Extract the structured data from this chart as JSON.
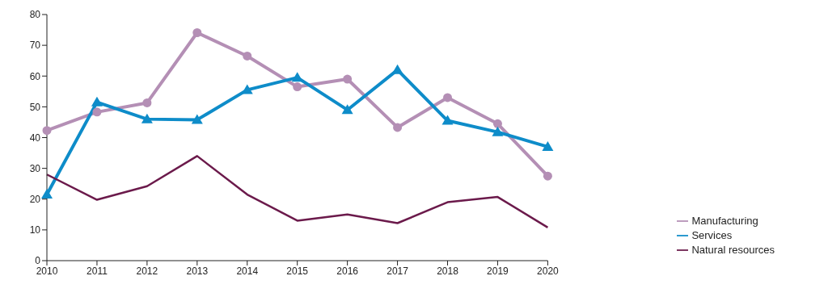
{
  "chart_data": {
    "type": "line",
    "categories": [
      "2010",
      "2011",
      "2012",
      "2013",
      "2014",
      "2015",
      "2016",
      "2017",
      "2018",
      "2019",
      "2020"
    ],
    "series": [
      {
        "name": "Manufacturing",
        "color": "#b48fb5",
        "marker": "circle",
        "values": [
          42.3,
          48.3,
          51.3,
          74.1,
          66.5,
          56.5,
          59,
          43.3,
          53,
          44.5,
          27.5
        ]
      },
      {
        "name": "Services",
        "color": "#0e8cc9",
        "marker": "triangle",
        "values": [
          21.5,
          51.5,
          46,
          45.8,
          55.5,
          59.5,
          49,
          62,
          45.5,
          41.8,
          37
        ]
      },
      {
        "name": "Natural resources",
        "color": "#6b1a4b",
        "marker": "none",
        "values": [
          28,
          19.8,
          24.2,
          34,
          21.5,
          13,
          15,
          12.2,
          19,
          20.7,
          10.8
        ]
      }
    ],
    "ylim": [
      0,
      80
    ],
    "yticks": [
      0,
      10,
      20,
      30,
      40,
      50,
      60,
      70,
      80
    ],
    "grid": false,
    "legend": "bottom right"
  }
}
